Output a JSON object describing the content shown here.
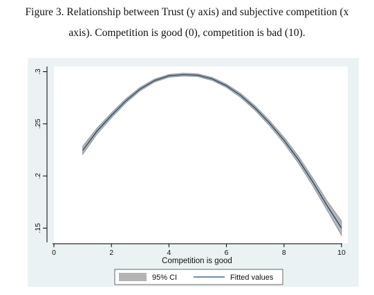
{
  "caption": {
    "line1": "Figure 3. Relationship between Trust (y axis) and subjective competition (x",
    "line2": "axis). Competition is good (0), competition is bad (10)."
  },
  "colors": {
    "frame_background": "#eaf2f3",
    "plot_background": "#ffffff",
    "ci_band": "#b4b4b4",
    "ci_band_edge": "#8f8f8f",
    "fitted_line": "#1a476f",
    "axis": "#000000"
  },
  "chart_data": {
    "type": "line",
    "title": "",
    "xlabel": "Competition is good",
    "ylabel": "",
    "xlim": [
      0,
      10
    ],
    "ylim": [
      0.135,
      0.305
    ],
    "x_ticks": [
      0,
      2,
      4,
      6,
      8,
      10
    ],
    "x_tick_labels": [
      "0",
      "2",
      "4",
      "6",
      "8",
      "10"
    ],
    "y_ticks": [
      0.15,
      0.2,
      0.25,
      0.3
    ],
    "y_tick_labels": [
      ".15",
      ".2",
      ".25",
      ".3"
    ],
    "grid": false,
    "legend_placement": "bottom-center",
    "legend": [
      "95% CI",
      "Fitted values"
    ],
    "series": [
      {
        "name": "Fitted values",
        "kind": "line",
        "x": [
          1,
          1.5,
          2,
          2.5,
          3,
          3.5,
          4,
          4.5,
          5,
          5.5,
          6,
          6.5,
          7,
          7.5,
          8,
          8.5,
          9,
          9.5,
          10
        ],
        "y": [
          0.2245,
          0.2431,
          0.2581,
          0.272,
          0.2834,
          0.2915,
          0.296,
          0.2972,
          0.2966,
          0.2931,
          0.2865,
          0.2771,
          0.265,
          0.2506,
          0.2343,
          0.2157,
          0.1944,
          0.1715,
          0.15
        ]
      },
      {
        "name": "95% CI",
        "kind": "band",
        "x": [
          1,
          1.5,
          2,
          2.5,
          3,
          3.5,
          4,
          4.5,
          5,
          5.5,
          6,
          6.5,
          7,
          7.5,
          8,
          8.5,
          9,
          9.5,
          10
        ],
        "lower": [
          0.2205,
          0.2401,
          0.2556,
          0.2699,
          0.2816,
          0.29,
          0.2946,
          0.2958,
          0.2952,
          0.2916,
          0.2848,
          0.2751,
          0.2627,
          0.248,
          0.2313,
          0.2123,
          0.1905,
          0.1669,
          0.143
        ],
        "upper": [
          0.2285,
          0.2461,
          0.2606,
          0.2741,
          0.2852,
          0.293,
          0.2974,
          0.2986,
          0.298,
          0.2946,
          0.2882,
          0.2791,
          0.2673,
          0.2532,
          0.2373,
          0.2191,
          0.1983,
          0.1761,
          0.157
        ]
      }
    ]
  }
}
